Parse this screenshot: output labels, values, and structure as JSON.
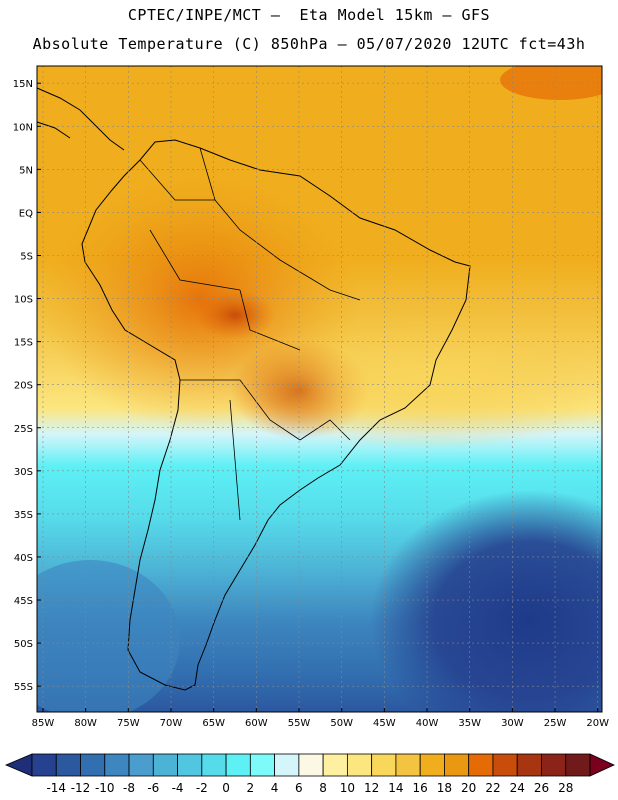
{
  "header": {
    "line1": "CPTEC/INPE/MCT –  Eta Model 15km – GFS",
    "line2": "Absolute Temperature (C) 850hPa – 05/07/2020 12UTC fct=43h"
  },
  "map": {
    "region": "South America",
    "lat_labels": [
      "15N",
      "10N",
      "5N",
      "EQ",
      "5S",
      "10S",
      "15S",
      "20S",
      "25S",
      "30S",
      "35S",
      "40S",
      "45S",
      "50S",
      "55S"
    ],
    "lat_values": [
      15,
      10,
      5,
      0,
      -5,
      -10,
      -15,
      -20,
      -25,
      -30,
      -35,
      -40,
      -45,
      -50,
      -55
    ],
    "lon_labels": [
      "85W",
      "80W",
      "75W",
      "70W",
      "65W",
      "60W",
      "55W",
      "50W",
      "45W",
      "40W",
      "35W",
      "30W",
      "25W",
      "20W"
    ],
    "lon_values": [
      -85,
      -80,
      -75,
      -70,
      -65,
      -60,
      -55,
      -50,
      -45,
      -40,
      -35,
      -30,
      -25,
      -20
    ],
    "lat_range": [
      -58,
      17
    ],
    "lon_range": [
      -85.7,
      -19.5
    ]
  },
  "colorbar": {
    "ticks": [
      "-14",
      "-12",
      "-10",
      "-8",
      "-6",
      "-4",
      "-2",
      "0",
      "2",
      "4",
      "6",
      "8",
      "10",
      "12",
      "14",
      "16",
      "18",
      "20",
      "22",
      "24",
      "26",
      "28"
    ],
    "colors": [
      "#26418f",
      "#2c58a0",
      "#326fb0",
      "#3d86bf",
      "#4a9dcc",
      "#4db3d6",
      "#51c6e0",
      "#56dbea",
      "#5df0f5",
      "#7dfbfb",
      "#d4f5fa",
      "#fdf8e4",
      "#fdf0a0",
      "#fce680",
      "#f9d75a",
      "#f3c342",
      "#f0ae1e",
      "#ea9812",
      "#e56b06",
      "#c84d0a",
      "#a83512",
      "#8c2318",
      "#701a1a"
    ],
    "under_color": "#1e2f78",
    "over_color": "#7a0020"
  }
}
